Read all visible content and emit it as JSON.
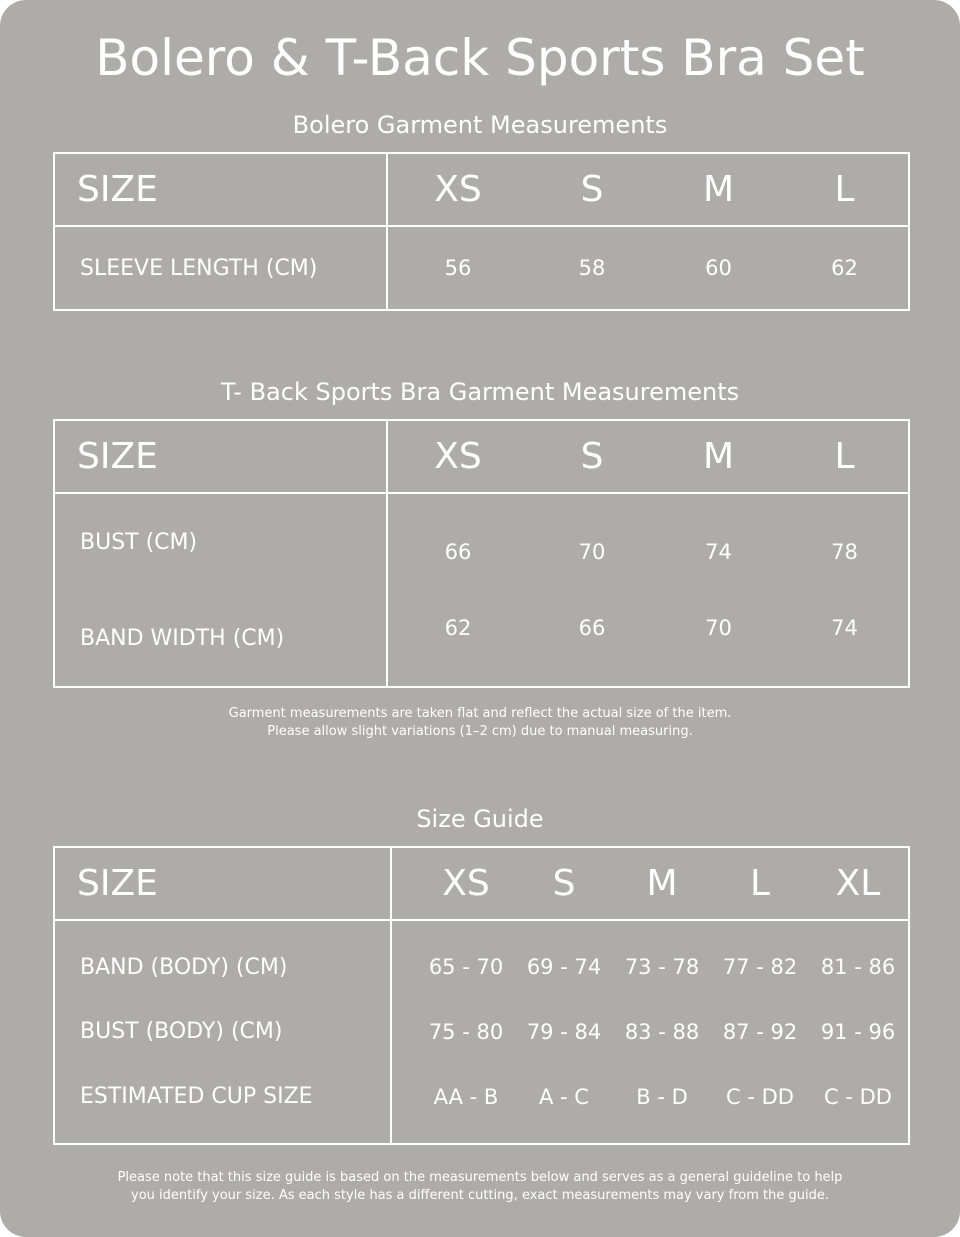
{
  "title": "Bolero & T-Back Sports Bra Set",
  "bolero": {
    "heading": "Bolero Garment Measurements",
    "size_label": "SIZE",
    "sizes": [
      "XS",
      "S",
      "M",
      "L"
    ],
    "rows": [
      {
        "label": "SLEEVE LENGTH (CM)",
        "values": [
          "56",
          "58",
          "60",
          "62"
        ]
      }
    ]
  },
  "bra": {
    "heading": "T- Back Sports Bra Garment Measurements",
    "size_label": "SIZE",
    "sizes": [
      "XS",
      "S",
      "M",
      "L"
    ],
    "rows": [
      {
        "label": "BUST (CM)",
        "values": [
          "66",
          "70",
          "74",
          "78"
        ]
      },
      {
        "label": "BAND WIDTH (CM)",
        "values": [
          "62",
          "66",
          "70",
          "74"
        ]
      }
    ],
    "note_line1": "Garment measurements are taken flat and reflect the actual size of the item.",
    "note_line2": "Please allow slight variations (1–2 cm) due to manual measuring."
  },
  "guide": {
    "heading": "Size Guide",
    "size_label": "SIZE",
    "sizes": [
      "XS",
      "S",
      "M",
      "L",
      "XL"
    ],
    "rows": [
      {
        "label": "BAND (BODY) (CM)",
        "values": [
          "65 - 70",
          "69 - 74",
          "73 - 78",
          "77 - 82",
          "81 - 86"
        ]
      },
      {
        "label": "BUST (BODY) (CM)",
        "values": [
          "75 - 80",
          "79 - 84",
          "83 - 88",
          "87 - 92",
          "91 - 96"
        ]
      },
      {
        "label": "ESTIMATED CUP SIZE",
        "values": [
          "AA - B",
          "A - C",
          "B - D",
          "C - DD",
          "C - DD"
        ]
      }
    ],
    "note_line1": "Please note that this size guide is based on the measurements below and serves as a general guideline to help",
    "note_line2": "you identify your size. As each style has a different cutting, exact measurements may vary from the guide."
  },
  "colors": {
    "background": "#adaca8",
    "text": "#ffffff"
  }
}
